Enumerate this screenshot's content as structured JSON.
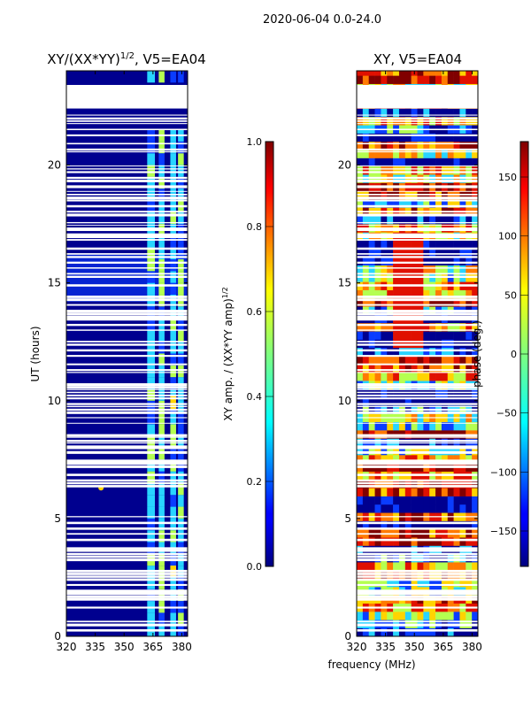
{
  "figure_title": "2020-06-04 0.0-24.0",
  "colors": {
    "deep_blue": "#00008f",
    "blue": "#0a3cff",
    "cyan": "#28d4ff",
    "green_yellow": "#b4ff50",
    "yellow": "#ffd400",
    "orange": "#ff7a00",
    "red": "#e01000",
    "dark_red": "#800000"
  },
  "chart_data": [
    {
      "type": "heatmap",
      "title_main": "XY/(XX*YY)",
      "title_exp": "1/2",
      "title_suffix": ", V5=EA04",
      "xlabel": "",
      "ylabel": "UT (hours)",
      "xlim": [
        320,
        383
      ],
      "ylim": [
        0,
        24
      ],
      "xticks": [
        320,
        335,
        350,
        365,
        380
      ],
      "yticks": [
        0,
        5,
        10,
        15,
        20
      ],
      "colorbar": {
        "label_main": "XY amp. / (XX*YY amp)",
        "label_exp": "1/2",
        "range": [
          0.0,
          1.0
        ],
        "ticks": [
          "0.0",
          "0.2",
          "0.4",
          "0.6",
          "0.8",
          "1.0"
        ],
        "tick_values": [
          0.0,
          0.2,
          0.4,
          0.6,
          0.8,
          1.0
        ]
      },
      "missing_time_ranges": [
        [
          22.4,
          23.4
        ]
      ],
      "bright_freq_bands_mhz": [
        [
          362,
          366
        ],
        [
          368,
          371
        ],
        [
          374,
          377
        ],
        [
          378,
          381
        ]
      ],
      "typical_value_background": 0.05,
      "typical_value_bands": 0.45
    },
    {
      "type": "heatmap",
      "title_main": "XY, V5=EA04",
      "xlabel": "frequency (MHz)",
      "ylabel": "",
      "xlim": [
        320,
        383
      ],
      "ylim": [
        0,
        24
      ],
      "xticks": [
        320,
        335,
        350,
        365,
        380
      ],
      "yticks": [
        0,
        5,
        10,
        15,
        20
      ],
      "colorbar": {
        "label_main": "phase (deg.)",
        "range": [
          -180,
          180
        ],
        "ticks": [
          "−150",
          "−100",
          "−50",
          "0",
          "50",
          "100",
          "150"
        ],
        "tick_values": [
          -150,
          -100,
          -50,
          0,
          50,
          100,
          150
        ]
      },
      "missing_time_ranges": [
        [
          22.4,
          23.4
        ]
      ]
    }
  ]
}
